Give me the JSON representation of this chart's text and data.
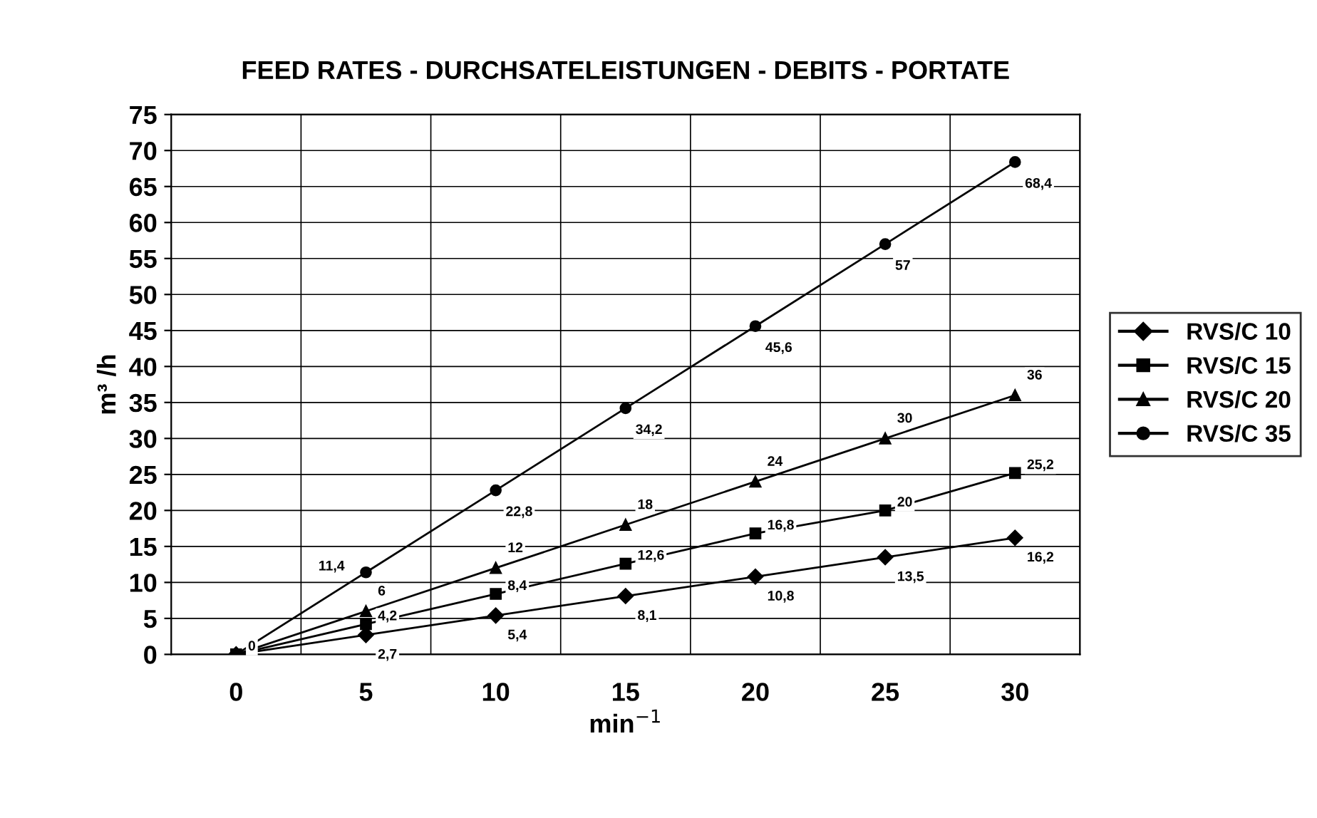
{
  "chart_data": {
    "type": "line",
    "title": "FEED RATES - DURCHSATELEISTUNGEN - DEBITS - PORTATE",
    "xlabel": "min$^{−1}$",
    "ylabel": "m³ /h",
    "categories": [
      "0",
      "5",
      "10",
      "15",
      "20",
      "25",
      "30"
    ],
    "ylim": [
      0,
      75
    ],
    "yticks": [
      0,
      5,
      10,
      15,
      20,
      25,
      30,
      35,
      40,
      45,
      50,
      55,
      60,
      65,
      70,
      75
    ],
    "grid": true,
    "legend": "right",
    "series": [
      {
        "name": "RVS/C 10",
        "color": "#000000",
        "marker": "diamond",
        "values": [
          0,
          2.7,
          5.4,
          8.1,
          10.8,
          13.5,
          16.2
        ],
        "value_labels": [
          null,
          "2,7",
          "5,4",
          "8,1",
          "10,8",
          "13,5",
          "16,2"
        ]
      },
      {
        "name": "RVS/C 15",
        "color": "#010101",
        "marker": "square",
        "values": [
          0,
          4.2,
          8.4,
          12.6,
          16.8,
          20,
          25.2
        ],
        "value_labels": [
          "0",
          "4,2",
          "8,4",
          "12,6",
          "16,8",
          "20",
          "25,2"
        ]
      },
      {
        "name": "RVS/C 20",
        "color": "#020202",
        "marker": "triangle",
        "values": [
          0,
          6,
          12,
          18,
          24,
          30,
          36
        ],
        "value_labels": [
          null,
          "6",
          "12",
          "18",
          "24",
          "30",
          "36"
        ]
      },
      {
        "name": "RVS/C 35",
        "color": "#030303",
        "marker": "circle",
        "values": [
          0,
          11.4,
          22.8,
          34.2,
          45.6,
          57,
          68.4
        ],
        "value_labels": [
          null,
          "11,4",
          "22,8",
          "34,2",
          "45,6",
          "57",
          "68,4"
        ]
      }
    ]
  }
}
